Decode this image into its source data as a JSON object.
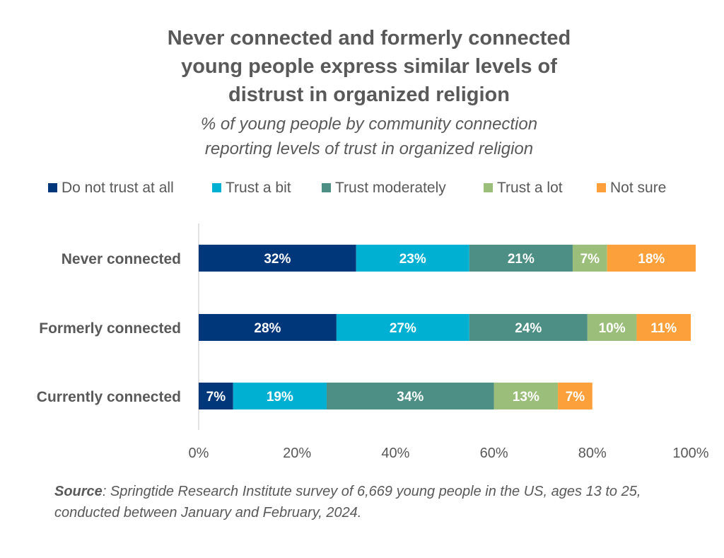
{
  "chart_data": {
    "type": "bar",
    "orientation": "horizontal",
    "stacked": true,
    "title_lines": [
      "Never connected and formerly connected",
      "young people express similar levels of",
      "distrust in organized religion"
    ],
    "subtitle_lines": [
      "% of young people by community connection",
      "reporting levels of trust in organized religion"
    ],
    "categories": [
      "Never connected",
      "Formerly connected",
      "Currently connected"
    ],
    "series": [
      {
        "name": "Do not trust at all",
        "color": "#00377a",
        "values": [
          32,
          28,
          7
        ],
        "labels": [
          "32%",
          "28%",
          "7%"
        ]
      },
      {
        "name": "Trust a bit",
        "color": "#00b0d2",
        "values": [
          23,
          27,
          19
        ],
        "labels": [
          "23%",
          "27%",
          "19%"
        ]
      },
      {
        "name": "Trust moderately",
        "color": "#4d8f84",
        "values": [
          21,
          24,
          34
        ],
        "labels": [
          "21%",
          "24%",
          "34%"
        ]
      },
      {
        "name": "Trust a lot",
        "color": "#9cbe7b",
        "values": [
          7,
          10,
          13
        ],
        "labels": [
          "7%",
          "10%",
          "13%"
        ]
      },
      {
        "name": "Not sure",
        "color": "#fba03a",
        "values": [
          18,
          11,
          7
        ],
        "labels": [
          "18%",
          "11%",
          "7%"
        ]
      }
    ],
    "xlim": [
      0,
      100
    ],
    "x_ticks": [
      0,
      20,
      40,
      60,
      80,
      100
    ],
    "x_tick_labels": [
      "0%",
      "20%",
      "40%",
      "60%",
      "80%",
      "100%"
    ],
    "grid": false,
    "legend_position": "top"
  },
  "source": {
    "label": "Source",
    "text": ": Springtide Research Institute survey of 6,669 young people in the US, ages 13 to 25, conducted between January and February, 2024."
  }
}
